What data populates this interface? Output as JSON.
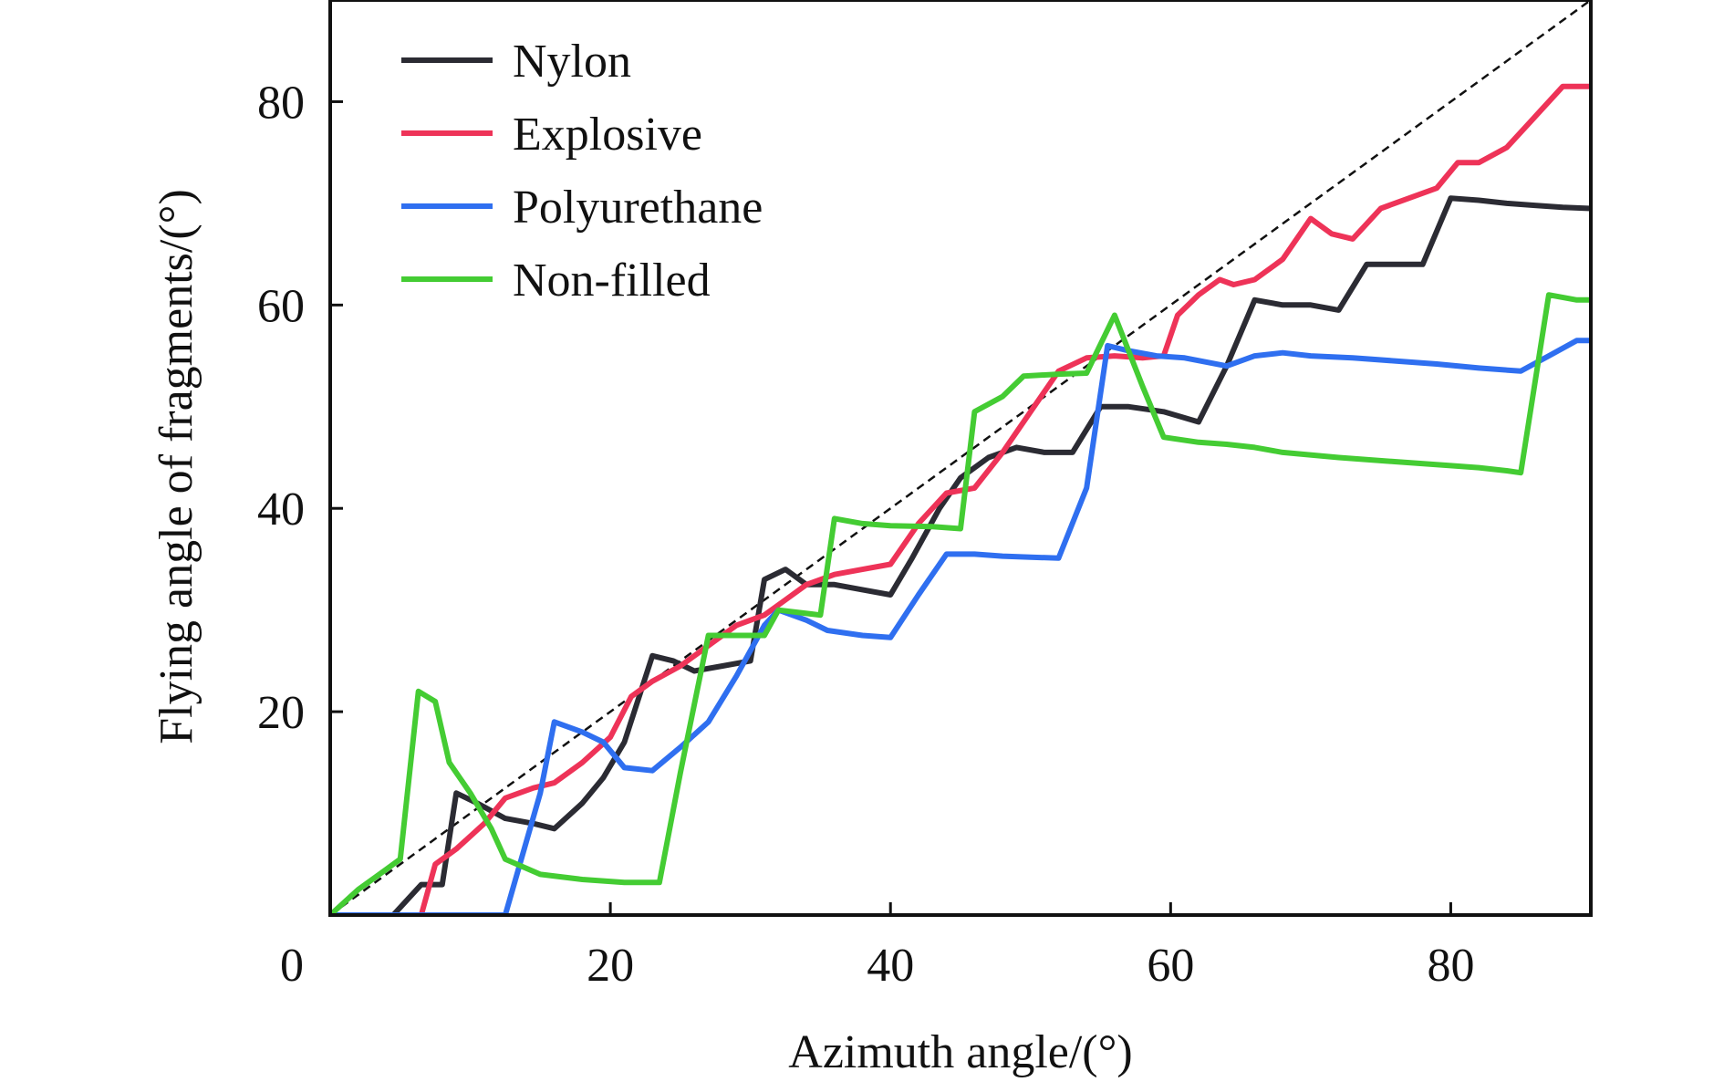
{
  "chart_data": {
    "type": "line",
    "title": "",
    "xlabel": "Azimuth angle/(°)",
    "ylabel": "Flying angle of fragments/(°)",
    "xlim": [
      0,
      90
    ],
    "ylim": [
      0,
      90
    ],
    "xticks": [
      0,
      20,
      40,
      60,
      80
    ],
    "yticks": [
      20,
      40,
      60,
      80
    ],
    "grid": false,
    "legend_position": "top-left",
    "reference_line": {
      "style": "dashed",
      "color": "#111111",
      "points": [
        [
          0,
          0
        ],
        [
          90,
          90
        ]
      ]
    },
    "series": [
      {
        "name": "Nylon",
        "color": "#2b2b33",
        "points": [
          [
            0,
            0
          ],
          [
            4.5,
            0
          ],
          [
            6.5,
            3
          ],
          [
            8,
            3
          ],
          [
            9,
            12
          ],
          [
            10.5,
            11
          ],
          [
            12.5,
            9.5
          ],
          [
            14.5,
            9
          ],
          [
            16,
            8.5
          ],
          [
            18,
            11
          ],
          [
            19.5,
            13.5
          ],
          [
            21,
            17
          ],
          [
            23,
            25.5
          ],
          [
            24.5,
            25
          ],
          [
            26,
            24
          ],
          [
            28,
            24.5
          ],
          [
            30,
            25
          ],
          [
            31,
            33
          ],
          [
            32.5,
            34
          ],
          [
            34,
            32.5
          ],
          [
            36,
            32.5
          ],
          [
            38,
            32
          ],
          [
            40,
            31.5
          ],
          [
            41.5,
            35
          ],
          [
            43.5,
            40
          ],
          [
            45,
            43
          ],
          [
            47,
            45
          ],
          [
            49,
            46
          ],
          [
            51,
            45.5
          ],
          [
            53,
            45.5
          ],
          [
            55,
            50
          ],
          [
            57,
            50
          ],
          [
            59.5,
            49.5
          ],
          [
            62,
            48.5
          ],
          [
            64,
            54
          ],
          [
            66,
            60.5
          ],
          [
            68,
            60
          ],
          [
            70,
            60
          ],
          [
            72,
            59.5
          ],
          [
            74,
            64
          ],
          [
            76,
            64
          ],
          [
            78,
            64
          ],
          [
            80,
            70.5
          ],
          [
            82,
            70.3
          ],
          [
            84,
            70
          ],
          [
            86,
            69.8
          ],
          [
            88,
            69.6
          ],
          [
            90,
            69.5
          ]
        ]
      },
      {
        "name": "Explosive",
        "color": "#ee3358",
        "points": [
          [
            6.5,
            0
          ],
          [
            7.5,
            5
          ],
          [
            9,
            6.5
          ],
          [
            11,
            9
          ],
          [
            12.5,
            11.5
          ],
          [
            14.5,
            12.5
          ],
          [
            16,
            13
          ],
          [
            18,
            15
          ],
          [
            20,
            17.5
          ],
          [
            21.5,
            21.5
          ],
          [
            23,
            23
          ],
          [
            25,
            24.5
          ],
          [
            27,
            26.5
          ],
          [
            29,
            28.5
          ],
          [
            31,
            29.5
          ],
          [
            32.5,
            31
          ],
          [
            34,
            32.5
          ],
          [
            36,
            33.5
          ],
          [
            38,
            34
          ],
          [
            40,
            34.5
          ],
          [
            42,
            38.5
          ],
          [
            44,
            41.5
          ],
          [
            46,
            42
          ],
          [
            48,
            45.5
          ],
          [
            50,
            49.5
          ],
          [
            52,
            53.5
          ],
          [
            54,
            54.8
          ],
          [
            56,
            55
          ],
          [
            58,
            54.8
          ],
          [
            59.5,
            55
          ],
          [
            60.5,
            59
          ],
          [
            62,
            61
          ],
          [
            63.5,
            62.5
          ],
          [
            64.5,
            62
          ],
          [
            66,
            62.5
          ],
          [
            68,
            64.5
          ],
          [
            70,
            68.5
          ],
          [
            71.5,
            67
          ],
          [
            73,
            66.5
          ],
          [
            75,
            69.5
          ],
          [
            77,
            70.5
          ],
          [
            79,
            71.5
          ],
          [
            80.5,
            74
          ],
          [
            82,
            74
          ],
          [
            84,
            75.5
          ],
          [
            86,
            78.5
          ],
          [
            88,
            81.5
          ],
          [
            90,
            81.5
          ]
        ]
      },
      {
        "name": "Polyurethane",
        "color": "#2f6ff0",
        "points": [
          [
            0,
            0
          ],
          [
            5,
            0
          ],
          [
            12.5,
            0
          ],
          [
            15,
            12
          ],
          [
            16,
            19
          ],
          [
            18,
            18
          ],
          [
            19.5,
            17
          ],
          [
            21,
            14.5
          ],
          [
            23,
            14.2
          ],
          [
            25,
            16.5
          ],
          [
            27,
            19
          ],
          [
            29,
            23.5
          ],
          [
            31,
            28.5
          ],
          [
            32,
            30
          ],
          [
            34,
            29
          ],
          [
            35.5,
            28
          ],
          [
            38,
            27.5
          ],
          [
            40,
            27.3
          ],
          [
            42,
            31.5
          ],
          [
            44,
            35.5
          ],
          [
            46,
            35.5
          ],
          [
            48,
            35.3
          ],
          [
            50,
            35.2
          ],
          [
            52,
            35.1
          ],
          [
            54,
            42
          ],
          [
            55.5,
            56
          ],
          [
            57,
            55.5
          ],
          [
            59,
            55
          ],
          [
            61,
            54.8
          ],
          [
            64,
            54
          ],
          [
            66,
            55
          ],
          [
            68,
            55.3
          ],
          [
            70,
            55
          ],
          [
            73,
            54.8
          ],
          [
            76,
            54.5
          ],
          [
            79,
            54.2
          ],
          [
            82,
            53.8
          ],
          [
            85,
            53.5
          ],
          [
            87,
            55
          ],
          [
            89,
            56.5
          ],
          [
            90,
            56.5
          ]
        ]
      },
      {
        "name": "Non-filled",
        "color": "#44cc33",
        "points": [
          [
            0,
            0
          ],
          [
            2,
            2.5
          ],
          [
            4,
            4.5
          ],
          [
            5,
            5.5
          ],
          [
            6.3,
            22
          ],
          [
            7.5,
            21
          ],
          [
            8.5,
            15
          ],
          [
            10,
            12
          ],
          [
            11.5,
            8.5
          ],
          [
            12.5,
            5.5
          ],
          [
            15,
            4
          ],
          [
            18,
            3.5
          ],
          [
            21,
            3.2
          ],
          [
            23.5,
            3.2
          ],
          [
            25,
            14
          ],
          [
            27,
            27.5
          ],
          [
            29,
            27.5
          ],
          [
            31,
            27.5
          ],
          [
            32,
            30
          ],
          [
            35,
            29.5
          ],
          [
            36,
            39
          ],
          [
            38,
            38.5
          ],
          [
            40,
            38.3
          ],
          [
            43,
            38.2
          ],
          [
            45,
            38
          ],
          [
            46,
            49.5
          ],
          [
            48,
            51
          ],
          [
            49.5,
            53
          ],
          [
            52,
            53.2
          ],
          [
            54,
            53.3
          ],
          [
            56,
            59
          ],
          [
            58,
            52
          ],
          [
            59.5,
            47
          ],
          [
            62,
            46.5
          ],
          [
            64,
            46.3
          ],
          [
            66,
            46
          ],
          [
            68,
            45.5
          ],
          [
            72,
            45
          ],
          [
            76,
            44.6
          ],
          [
            80,
            44.2
          ],
          [
            82,
            44
          ],
          [
            84,
            43.7
          ],
          [
            85,
            43.5
          ],
          [
            87,
            61
          ],
          [
            89,
            60.5
          ],
          [
            90,
            60.5
          ]
        ]
      }
    ]
  }
}
